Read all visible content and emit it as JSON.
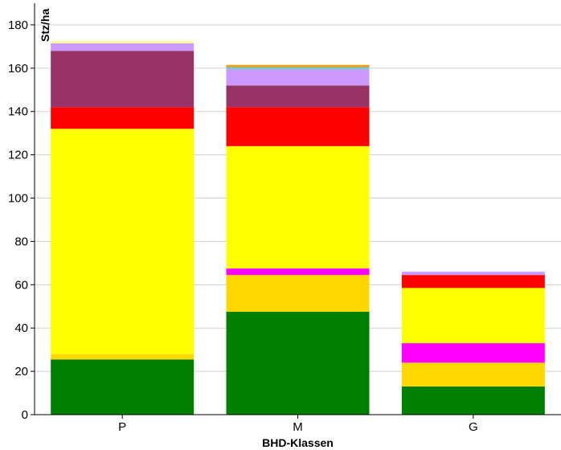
{
  "chart_data": {
    "type": "bar",
    "stacked": true,
    "xlabel": "BHD-Klassen",
    "ylabel": "Stz/ha",
    "ylim": [
      0,
      190
    ],
    "yticks": [
      0,
      20,
      40,
      60,
      80,
      100,
      120,
      140,
      160,
      180
    ],
    "grid": "horizontal",
    "legend": "none",
    "categories": [
      "P",
      "M",
      "G"
    ],
    "series": [
      {
        "color": "#008000",
        "values": [
          25.5,
          47.5,
          13
        ]
      },
      {
        "color": "#FFD700",
        "values": [
          2.5,
          17,
          11
        ]
      },
      {
        "color": "#FF00FF",
        "values": [
          0,
          3,
          9
        ]
      },
      {
        "color": "#FFFF00",
        "values": [
          104,
          56.5,
          25.5
        ]
      },
      {
        "color": "#FF0000",
        "values": [
          10,
          18,
          6
        ]
      },
      {
        "color": "#993366",
        "values": [
          26,
          10,
          0
        ]
      },
      {
        "color": "#CC99FF",
        "values": [
          3.5,
          7.5,
          1.5
        ]
      },
      {
        "color": "#66CCCC",
        "values": [
          0,
          1,
          0
        ]
      },
      {
        "color": "#FFFF99",
        "values": [
          1,
          0,
          0
        ]
      },
      {
        "color": "#FF9900",
        "values": [
          0,
          1,
          0
        ]
      }
    ]
  }
}
